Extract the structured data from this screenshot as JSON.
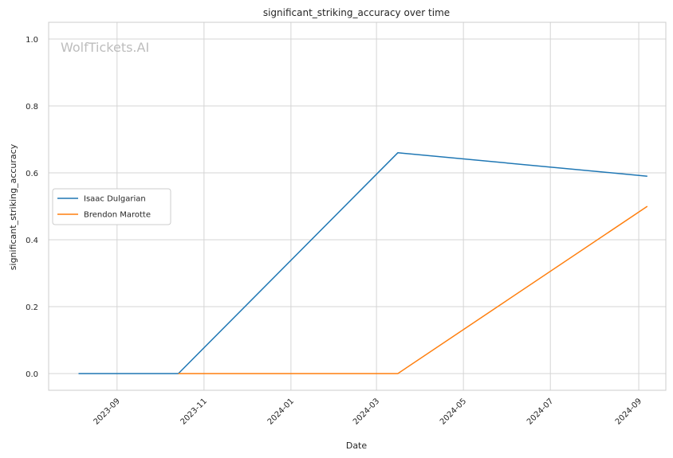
{
  "watermark": "WolfTickets.AI",
  "chart_data": {
    "type": "line",
    "title": "significant_striking_accuracy over time",
    "xlabel": "Date",
    "ylabel": "significant_striking_accuracy",
    "xlim": [
      "2023-07-15",
      "2024-09-20"
    ],
    "ylim": [
      -0.05,
      1.05
    ],
    "x_ticks": [
      "2023-09",
      "2023-11",
      "2024-01",
      "2024-03",
      "2024-05",
      "2024-07",
      "2024-09"
    ],
    "y_ticks": [
      "0.0",
      "0.2",
      "0.4",
      "0.6",
      "0.8",
      "1.0"
    ],
    "grid": true,
    "legend_position": "center-left",
    "series": [
      {
        "name": "Isaac Dulgarian",
        "color": "#1f77b4",
        "points": [
          {
            "x": "2023-08-05",
            "y": 0.0
          },
          {
            "x": "2023-10-14",
            "y": 0.0
          },
          {
            "x": "2024-03-16",
            "y": 0.66
          },
          {
            "x": "2024-09-07",
            "y": 0.59
          }
        ]
      },
      {
        "name": "Brendon Marotte",
        "color": "#ff7f0e",
        "points": [
          {
            "x": "2023-10-14",
            "y": 0.0
          },
          {
            "x": "2024-03-16",
            "y": 0.0
          },
          {
            "x": "2024-09-07",
            "y": 0.5
          }
        ]
      }
    ]
  }
}
